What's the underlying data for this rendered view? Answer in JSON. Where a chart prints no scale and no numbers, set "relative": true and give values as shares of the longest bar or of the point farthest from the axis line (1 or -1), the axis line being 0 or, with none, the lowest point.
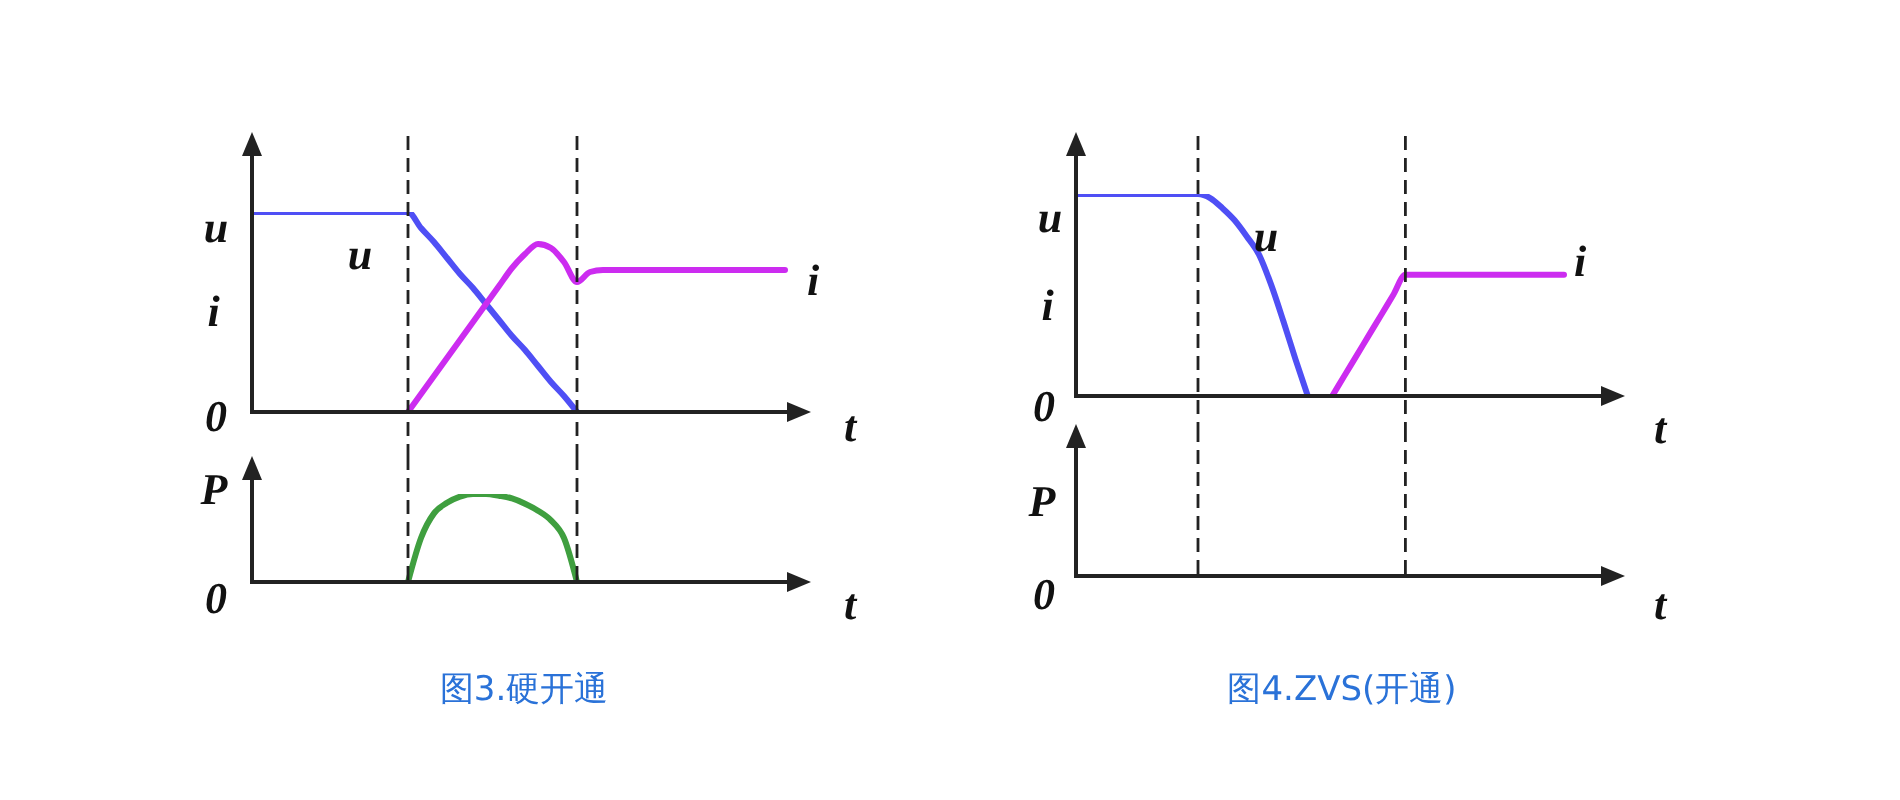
{
  "chart_data": [
    {
      "type": "line",
      "relative": true,
      "ylabel": "u i",
      "xlabel": "t",
      "categories": [
        null,
        null,
        null,
        null,
        null,
        null,
        null,
        null,
        null,
        null,
        null,
        null,
        null,
        null,
        null,
        null,
        null,
        null,
        null,
        null,
        null,
        null,
        null,
        null,
        null,
        null,
        null,
        null,
        null,
        null,
        null,
        null,
        null,
        null,
        null,
        null,
        null,
        null,
        null,
        null,
        null,
        null,
        null
      ],
      "series": [
        {
          "name": "u",
          "color": "#4f4ff5",
          "values": [
            1,
            1,
            1,
            1,
            1,
            1,
            1,
            1,
            1,
            1,
            1,
            1,
            1,
            0.92,
            0.85,
            0.77,
            0.69,
            0.62,
            0.54,
            0.46,
            0.38,
            0.31,
            0.23,
            0.15,
            0.08,
            0,
            null,
            null,
            null,
            null,
            null,
            null,
            null,
            null,
            null,
            null,
            null,
            null,
            null,
            null,
            null,
            null,
            null
          ]
        },
        {
          "name": "i",
          "color": "#cc2cf0",
          "values": [
            null,
            null,
            null,
            null,
            null,
            null,
            null,
            null,
            null,
            null,
            null,
            null,
            0,
            0.09,
            0.18,
            0.27,
            0.36,
            0.45,
            0.54,
            0.63,
            0.72,
            0.79,
            0.84,
            0.82,
            0.75,
            0.65,
            0.7,
            0.71,
            0.71,
            0.71,
            0.71,
            0.71,
            0.71,
            0.71,
            0.71,
            0.71,
            0.71,
            0.71,
            0.71,
            0.71,
            0.71,
            0.71,
            null
          ]
        }
      ],
      "annotations": [
        "0"
      ]
    },
    {
      "type": "line",
      "relative": true,
      "ylabel": "P",
      "xlabel": "t",
      "categories": [
        null,
        null,
        null,
        null,
        null,
        null,
        null,
        null,
        null,
        null,
        null,
        null,
        null,
        null,
        null,
        null,
        null,
        null,
        null,
        null,
        null,
        null,
        null,
        null,
        null,
        null,
        null,
        null,
        null,
        null,
        null,
        null,
        null,
        null,
        null,
        null,
        null,
        null,
        null,
        null,
        null,
        null,
        null
      ],
      "series": [
        {
          "color": "#3f9f3f",
          "values": [
            null,
            null,
            null,
            null,
            null,
            null,
            null,
            null,
            null,
            null,
            null,
            null,
            0,
            0.5,
            0.78,
            0.9,
            0.97,
            1,
            1,
            0.98,
            0.95,
            0.89,
            0.81,
            0.7,
            0.5,
            0,
            null,
            null,
            null,
            null,
            null,
            null,
            null,
            null,
            null,
            null,
            null,
            null,
            null,
            null,
            null,
            null,
            null
          ]
        }
      ],
      "annotations": [
        "0",
        "图3.硬开通"
      ]
    },
    {
      "type": "line",
      "relative": true,
      "ylabel": "u i",
      "xlabel": "t",
      "categories": [
        null,
        null,
        null,
        null,
        null,
        null,
        null,
        null,
        null,
        null,
        null,
        null,
        null,
        null,
        null,
        null,
        null,
        null,
        null,
        null,
        null,
        null,
        null,
        null,
        null,
        null,
        null,
        null,
        null,
        null,
        null,
        null,
        null,
        null,
        null,
        null,
        null,
        null,
        null,
        null,
        null,
        null,
        null,
        null,
        null
      ],
      "series": [
        {
          "name": "u",
          "color": "#4f4ff5",
          "values": [
            1,
            1,
            1,
            1,
            1,
            1,
            1,
            1,
            1,
            1,
            1,
            0.98,
            0.93,
            0.87,
            0.79,
            0.7,
            0.55,
            0.37,
            0.18,
            0,
            null,
            null,
            null,
            null,
            null,
            null,
            null,
            null,
            null,
            null,
            null,
            null,
            null,
            null,
            null,
            null,
            null,
            null,
            null,
            null,
            null,
            null,
            null,
            null,
            null
          ]
        },
        {
          "name": "i",
          "color": "#cc2cf0",
          "values": [
            null,
            null,
            null,
            null,
            null,
            null,
            null,
            null,
            null,
            null,
            null,
            null,
            null,
            null,
            null,
            null,
            null,
            null,
            null,
            null,
            null,
            0,
            0.1,
            0.2,
            0.3,
            0.4,
            0.5,
            0.6,
            0.6,
            0.6,
            0.6,
            0.6,
            0.6,
            0.6,
            0.6,
            0.6,
            0.6,
            0.6,
            0.6,
            0.6,
            0.6,
            null,
            null,
            null,
            null
          ]
        }
      ],
      "annotations": [
        "0"
      ]
    },
    {
      "type": "other",
      "ylabel": "P",
      "xlabel": "t",
      "annotations": [
        "0",
        "图4.ZVS(开通)"
      ]
    }
  ]
}
